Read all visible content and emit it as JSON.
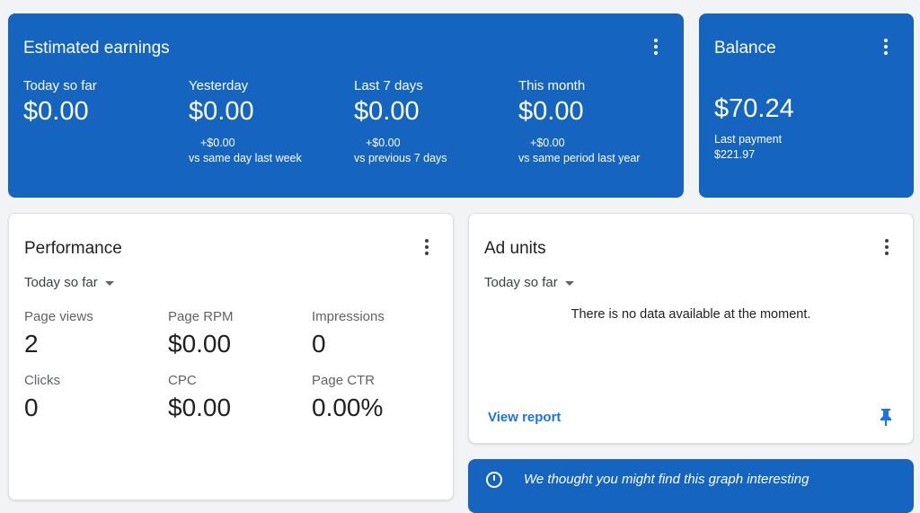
{
  "earnings": {
    "title": "Estimated earnings",
    "columns": [
      {
        "label": "Today so far",
        "value": "$0.00"
      },
      {
        "label": "Yesterday",
        "value": "$0.00",
        "delta": "+$0.00",
        "compare": "vs same day last week"
      },
      {
        "label": "Last 7 days",
        "value": "$0.00",
        "delta": "+$0.00",
        "compare": "vs previous 7 days"
      },
      {
        "label": "This month",
        "value": "$0.00",
        "delta": "+$0.00",
        "compare": "vs same period last year"
      }
    ]
  },
  "balance": {
    "title": "Balance",
    "value": "$70.24",
    "last_payment_label": "Last payment",
    "last_payment_value": "$221.97"
  },
  "performance": {
    "title": "Performance",
    "range": "Today so far",
    "metrics": [
      {
        "label": "Page views",
        "value": "2"
      },
      {
        "label": "Page RPM",
        "value": "$0.00"
      },
      {
        "label": "Impressions",
        "value": "0"
      },
      {
        "label": "Clicks",
        "value": "0"
      },
      {
        "label": "CPC",
        "value": "$0.00"
      },
      {
        "label": "Page CTR",
        "value": "0.00%"
      }
    ]
  },
  "ad_units": {
    "title": "Ad units",
    "range": "Today so far",
    "empty": "There is no data available at the moment.",
    "link": "View report"
  },
  "banner": {
    "text": "We thought you might find this graph interesting"
  },
  "colors": {
    "accent": "#1565c0",
    "link": "#1a73e8"
  }
}
